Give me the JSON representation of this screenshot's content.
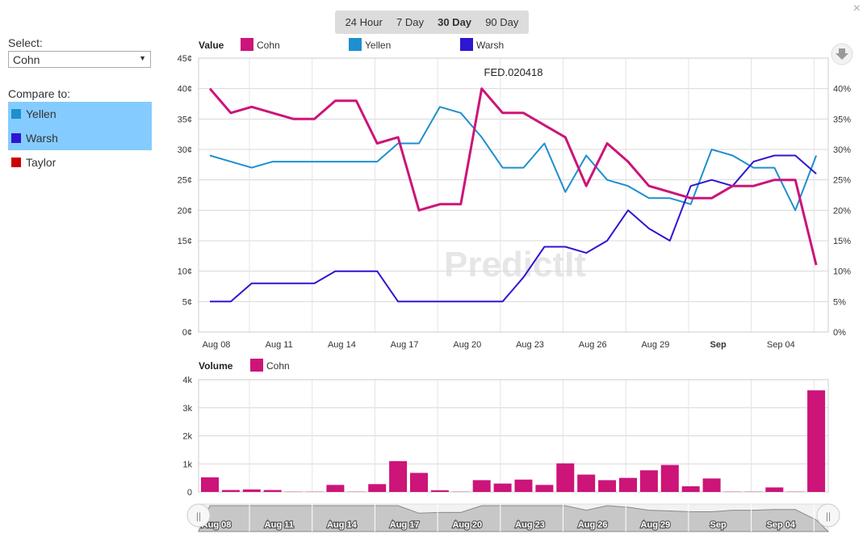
{
  "close_label": "×",
  "tabs": [
    {
      "label": "24 Hour",
      "active": false
    },
    {
      "label": "7 Day",
      "active": false
    },
    {
      "label": "30 Day",
      "active": true
    },
    {
      "label": "90 Day",
      "active": false
    }
  ],
  "select": {
    "label": "Select:",
    "value": "Cohn"
  },
  "compare": {
    "label": "Compare to:",
    "items": [
      {
        "name": "Yellen",
        "color": "#1e8fcf",
        "selected": true
      },
      {
        "name": "Warsh",
        "color": "#2d17d1",
        "selected": true
      },
      {
        "name": "Taylor",
        "color": "#cc0000",
        "selected": false
      }
    ]
  },
  "watermark": "PredictIt",
  "chart_data": [
    {
      "type": "line",
      "legend_title": "Value",
      "annotation": "FED.020418",
      "y_ticks_left": [
        "0¢",
        "5¢",
        "10¢",
        "15¢",
        "20¢",
        "25¢",
        "30¢",
        "35¢",
        "40¢",
        "45¢"
      ],
      "y_ticks_right": [
        "0%",
        "5%",
        "10%",
        "15%",
        "20%",
        "25%",
        "30%",
        "35%",
        "40%",
        "45%"
      ],
      "ylim": [
        0,
        45
      ],
      "x_tick_labels": [
        {
          "label": "Aug 08",
          "i": 0,
          "bold": false
        },
        {
          "label": "Aug 11",
          "i": 3,
          "bold": false
        },
        {
          "label": "Aug 14",
          "i": 6,
          "bold": false
        },
        {
          "label": "Aug 17",
          "i": 9,
          "bold": false
        },
        {
          "label": "Aug 20",
          "i": 12,
          "bold": false
        },
        {
          "label": "Aug 23",
          "i": 15,
          "bold": false
        },
        {
          "label": "Aug 26",
          "i": 18,
          "bold": false
        },
        {
          "label": "Aug 29",
          "i": 21,
          "bold": false
        },
        {
          "label": "Sep",
          "i": 24,
          "bold": true
        },
        {
          "label": "Sep 04",
          "i": 27,
          "bold": false
        }
      ],
      "series": [
        {
          "name": "Cohn",
          "color": "#cc1479",
          "values": [
            40,
            36,
            37,
            36,
            35,
            35,
            38,
            38,
            31,
            32,
            20,
            21,
            21,
            40,
            36,
            36,
            34,
            32,
            24,
            31,
            28,
            24,
            23,
            22,
            22,
            24,
            24,
            25,
            25,
            11
          ]
        },
        {
          "name": "Yellen",
          "color": "#1e8fcf",
          "values": [
            29,
            28,
            27,
            28,
            28,
            28,
            28,
            28,
            28,
            31,
            31,
            37,
            36,
            32,
            27,
            27,
            31,
            23,
            29,
            25,
            24,
            22,
            22,
            21,
            30,
            29,
            27,
            27,
            20,
            29
          ]
        },
        {
          "name": "Warsh",
          "color": "#2d17d1",
          "values": [
            5,
            5,
            8,
            8,
            8,
            8,
            10,
            10,
            10,
            5,
            5,
            5,
            5,
            5,
            5,
            9,
            14,
            14,
            13,
            15,
            20,
            17,
            15,
            24,
            25,
            24,
            28,
            29,
            29,
            26
          ]
        }
      ]
    },
    {
      "type": "bar",
      "legend_title": "Volume",
      "y_ticks": [
        "0",
        "1k",
        "2k",
        "3k",
        "4k"
      ],
      "ylim": [
        0,
        4000
      ],
      "series": [
        {
          "name": "Cohn",
          "color": "#cc1479",
          "values": [
            520,
            70,
            90,
            70,
            10,
            10,
            250,
            10,
            280,
            1100,
            680,
            60,
            10,
            420,
            300,
            440,
            250,
            1020,
            620,
            420,
            500,
            770,
            960,
            200,
            480,
            10,
            10,
            160,
            10,
            3620
          ]
        }
      ]
    }
  ],
  "navigator_labels": [
    "Aug 08",
    "Aug 11",
    "Aug 14",
    "Aug 17",
    "Aug 20",
    "Aug 23",
    "Aug 26",
    "Aug 29",
    "Sep",
    "Sep 04"
  ]
}
